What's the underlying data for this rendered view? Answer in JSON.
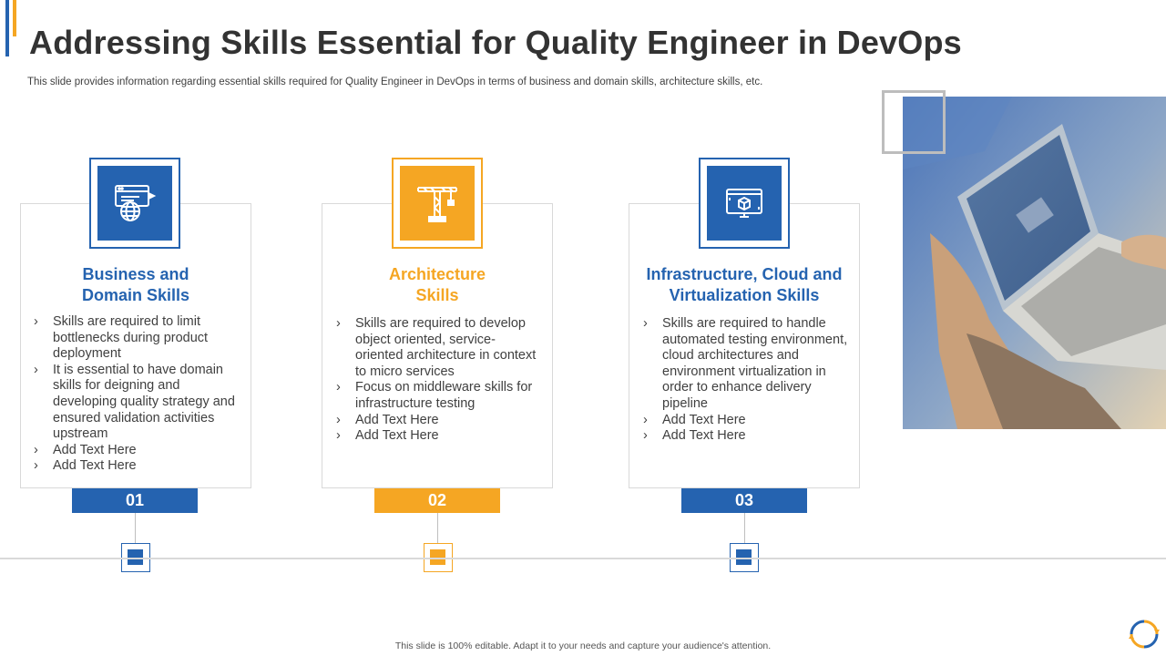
{
  "slide": {
    "title": "Addressing Skills Essential for Quality Engineer in DevOps",
    "subtitle": "This slide provides information regarding essential skills required for Quality Engineer in DevOps in terms of business and domain skills, architecture skills, etc.",
    "footer": "This slide is 100% editable. Adapt it to your needs and capture your audience's attention."
  },
  "colors": {
    "blue": "#2563b0",
    "orange": "#f5a623",
    "text": "#404040"
  },
  "cards": [
    {
      "icon": "web-globe-icon",
      "title_line1": "Business and",
      "title_line2": "Domain Skills",
      "number": "01",
      "bullets": [
        "Skills are required to limit bottlenecks during product deployment",
        "It is essential to have domain skills for deigning and developing quality strategy and ensured validation activities upstream",
        "Add Text Here",
        "Add Text Here"
      ]
    },
    {
      "icon": "crane-icon",
      "title_line1": "Architecture",
      "title_line2": "Skills",
      "number": "02",
      "bullets": [
        "Skills are required to develop object oriented, service-oriented architecture in context to micro services",
        "Focus on middleware skills for infrastructure testing",
        "Add Text Here",
        "Add Text Here"
      ]
    },
    {
      "icon": "virtual-cube-monitor-icon",
      "title_line1": "Infrastructure, Cloud and",
      "title_line2": "Virtualization Skills",
      "number": "03",
      "bullets": [
        "Skills are required to handle automated testing environment, cloud architectures and environment virtualization in order to enhance delivery pipeline",
        "Add Text Here",
        "Add Text Here"
      ]
    }
  ],
  "chevron": "›"
}
